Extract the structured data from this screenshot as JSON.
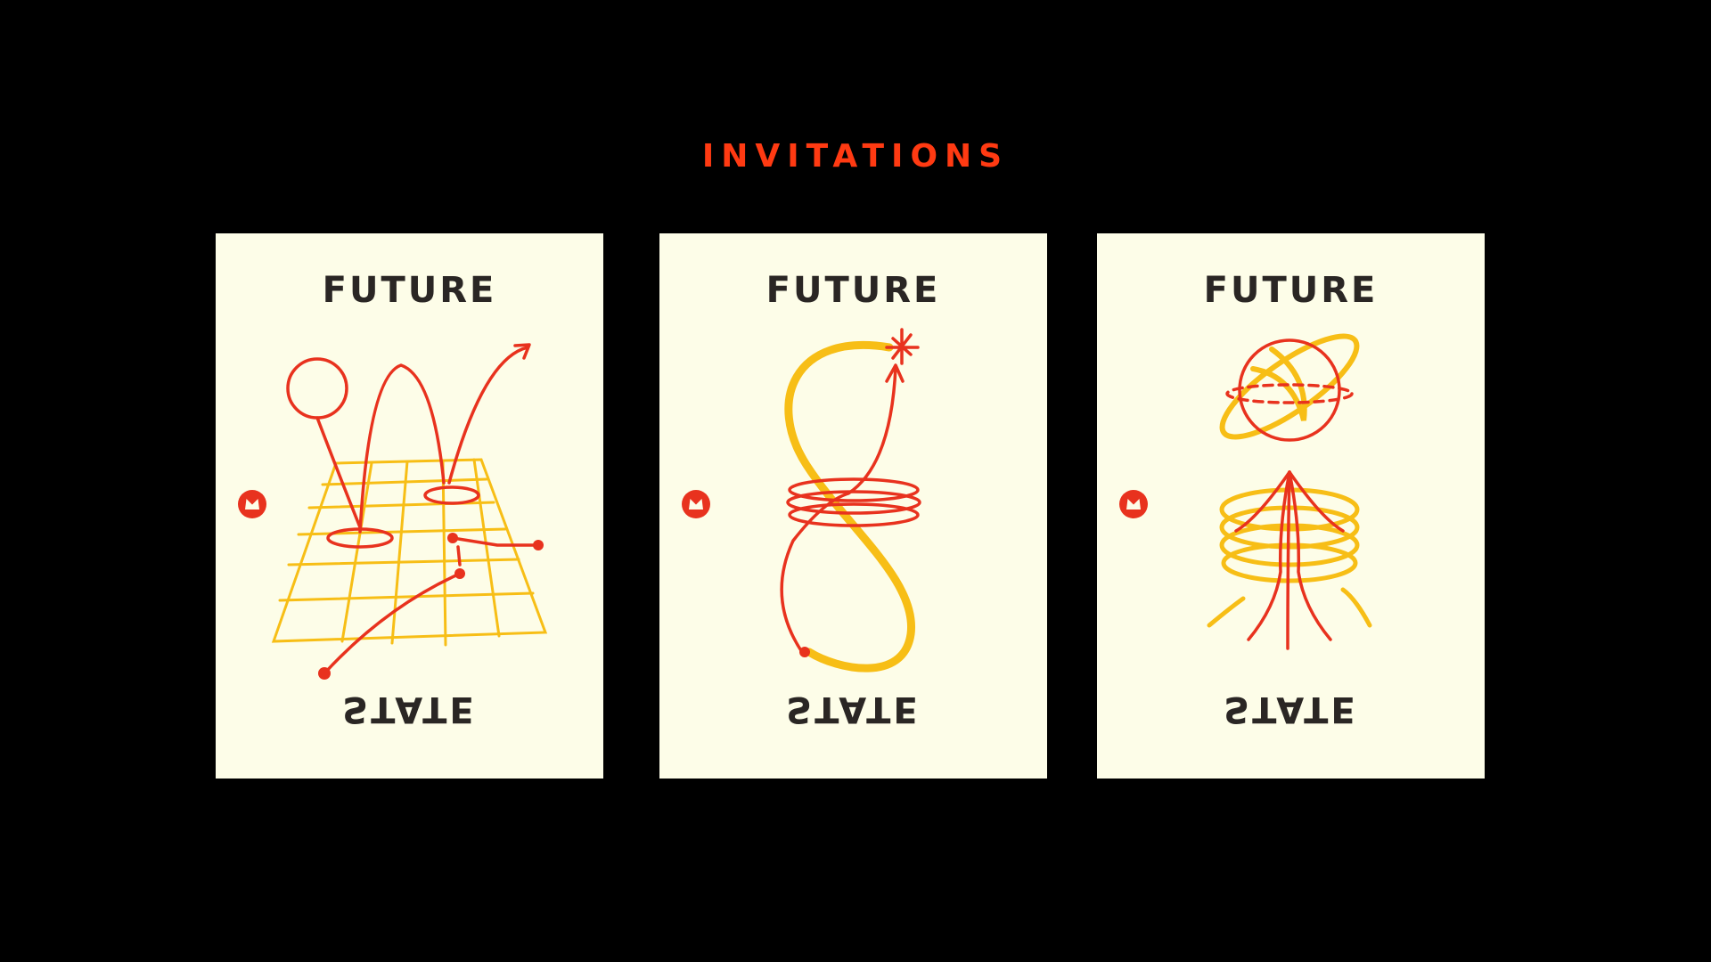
{
  "title": "INVITATIONS",
  "colors": {
    "background": "#000000",
    "card": "#fdfde8",
    "accent_red": "#e8321e",
    "accent_yellow": "#f7be16",
    "text_dark": "#2a2624",
    "title_red": "#ff3a12"
  },
  "cards": [
    {
      "top_text": "FUTURE",
      "bottom_text": "STATE",
      "logo_icon": "brand-logo-icon",
      "illustration_icon": "grid-hops-illustration-icon"
    },
    {
      "top_text": "FUTURE",
      "bottom_text": "STATE",
      "logo_icon": "brand-logo-icon",
      "illustration_icon": "figure-eight-loop-illustration-icon"
    },
    {
      "top_text": "FUTURE",
      "bottom_text": "STATE",
      "logo_icon": "brand-logo-icon",
      "illustration_icon": "sphere-vortex-illustration-icon"
    }
  ]
}
